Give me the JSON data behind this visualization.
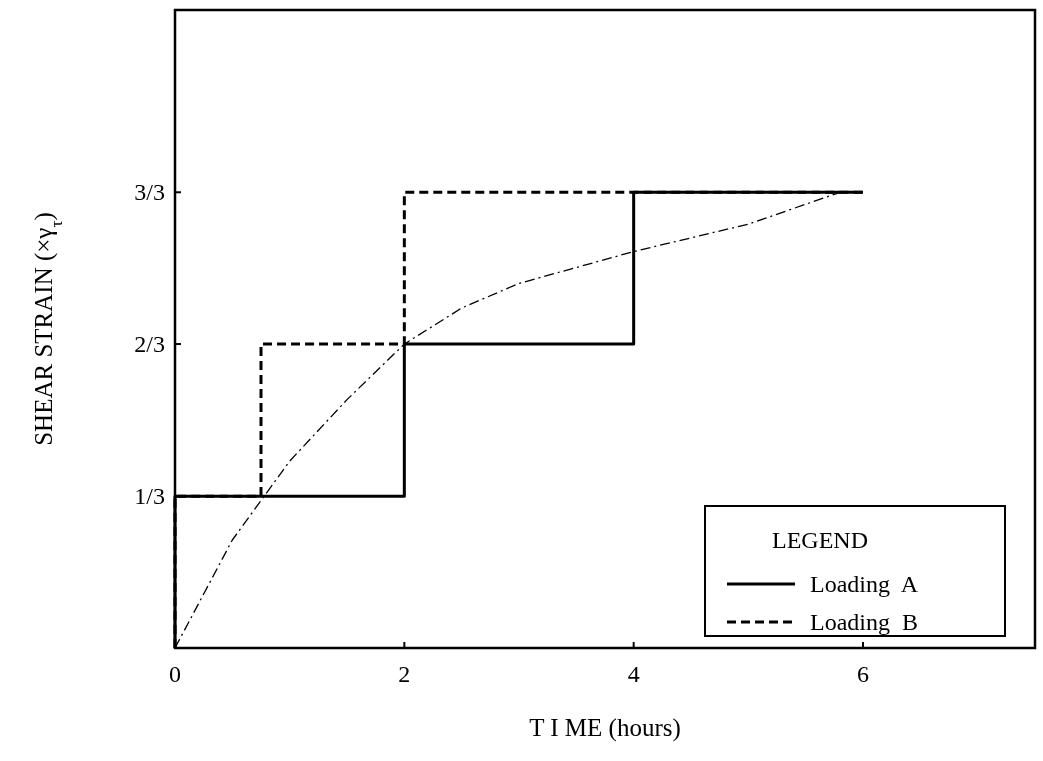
{
  "chart_data": {
    "type": "line",
    "xlabel": "T I ME (hours)",
    "ylabel": "SHEAR  STRAIN  (×γ$_{τ}$)",
    "legend_title": "LEGEND",
    "legend": "bottom right",
    "grid": false,
    "xlim": [
      0,
      7.5
    ],
    "ylim": [
      0,
      1.4
    ],
    "xticks": [
      0,
      2,
      4,
      6
    ],
    "yticks": [
      {
        "value": 0.333,
        "label": "1/3"
      },
      {
        "value": 0.667,
        "label": "2/3"
      },
      {
        "value": 1,
        "label": "3/3"
      }
    ],
    "series": [
      {
        "name": "Loading  A",
        "color": "#000000",
        "line_style": "solid",
        "x": [
          0,
          0,
          2,
          2,
          4,
          4,
          6
        ],
        "values": [
          0,
          0.333,
          0.333,
          0.667,
          0.667,
          1,
          1
        ]
      },
      {
        "name": "Loading  B",
        "color": "#000000",
        "line_style": "dashed",
        "x": [
          0,
          0,
          0.75,
          0.75,
          2,
          2,
          6
        ],
        "values": [
          0,
          0.333,
          0.333,
          0.667,
          0.667,
          1,
          1
        ]
      },
      {
        "color": "#000000",
        "line_style": "dashdot",
        "x": [
          0,
          0.5,
          1,
          1.5,
          2,
          2.5,
          3,
          4,
          5,
          5.8
        ],
        "values": [
          0,
          0.237,
          0.41,
          0.545,
          0.667,
          0.746,
          0.8,
          0.87,
          0.93,
          1
        ]
      }
    ]
  }
}
